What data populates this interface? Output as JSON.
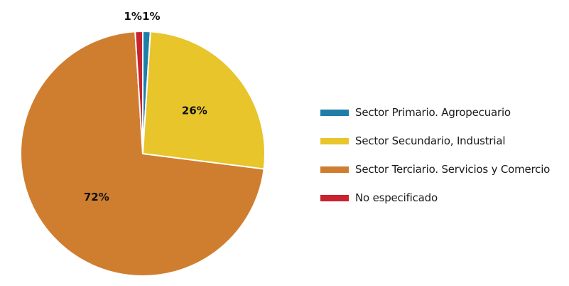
{
  "chart_data": {
    "type": "pie",
    "title": "",
    "slices": [
      {
        "label": "Sector Primario. Agropecuario",
        "value": 1,
        "display": "1%",
        "color": "#1f7ea8"
      },
      {
        "label": "Sector Secundario, Industrial",
        "value": 26,
        "display": "26%",
        "color": "#e7c52b"
      },
      {
        "label": "Sector Terciario. Servicios y Comercio",
        "value": 72,
        "display": "72%",
        "color": "#cf7e2f"
      },
      {
        "label": "No especificado",
        "value": 1,
        "display": "1%",
        "color": "#c8232e"
      }
    ],
    "legend_position": "right"
  }
}
